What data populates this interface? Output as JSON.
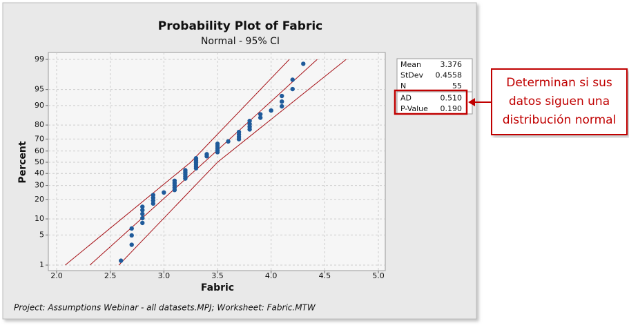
{
  "chart_data": {
    "type": "probability",
    "title": "Probability Plot of Fabric",
    "subtitle": "Normal - 95% CI",
    "x_label": "Fabric",
    "y_label": "Percent",
    "y_scale": "normal-probability",
    "grid": true,
    "xlim": [
      2,
      5
    ],
    "ylim": [
      1,
      99
    ],
    "xticks": [
      {
        "value": 2,
        "label": "2.0"
      },
      2.5,
      {
        "value": 3,
        "label": "3.0"
      },
      3.5,
      {
        "value": 4,
        "label": "4.0"
      },
      4.5,
      {
        "value": 5,
        "label": "5.0"
      }
    ],
    "yticks": [
      1,
      5,
      10,
      20,
      30,
      40,
      50,
      60,
      70,
      80,
      90,
      95,
      99
    ],
    "series": [
      {
        "color": "#1f5a9a",
        "x": [
          2.6,
          2.7,
          2.7,
          2.7,
          2.8,
          2.8,
          2.8,
          2.8,
          2.8,
          2.9,
          2.9,
          2.9,
          2.9,
          3.0,
          3.1,
          3.1,
          3.1,
          3.1,
          3.1,
          3.2,
          3.2,
          3.2,
          3.2,
          3.2,
          3.3,
          3.3,
          3.3,
          3.3,
          3.3,
          3.3,
          3.4,
          3.4,
          3.5,
          3.5,
          3.5,
          3.5,
          3.5,
          3.6,
          3.7,
          3.7,
          3.7,
          3.7,
          3.8,
          3.8,
          3.8,
          3.8,
          3.9,
          3.9,
          4.0,
          4.1,
          4.1,
          4.1,
          4.2,
          4.2,
          4.3
        ],
        "values": [
          1.3,
          3.1,
          4.9,
          6.7,
          8.5,
          10.3,
          12.1,
          13.9,
          15.7,
          17.5,
          19.3,
          21.1,
          22.9,
          24.7,
          26.5,
          28.3,
          30.1,
          31.9,
          33.8,
          35.6,
          37.4,
          39.2,
          41.0,
          42.8,
          44.6,
          46.4,
          48.2,
          50.0,
          51.8,
          53.6,
          55.4,
          57.2,
          59.0,
          60.8,
          62.6,
          64.4,
          66.2,
          68.1,
          69.9,
          71.7,
          73.5,
          75.3,
          77.1,
          78.9,
          80.7,
          82.5,
          84.3,
          86.1,
          87.9,
          89.7,
          91.5,
          93.3,
          95.1,
          96.9,
          98.7
        ]
      }
    ],
    "lines": [
      {
        "color": "#a50f15",
        "x": [
          2.08,
          3.25,
          4.17
        ],
        "values": [
          1,
          50,
          99
        ]
      },
      {
        "color": "#a50f15",
        "x": [
          2.31,
          3.376,
          4.43
        ],
        "values": [
          1,
          50,
          99
        ]
      },
      {
        "color": "#a50f15",
        "x": [
          2.58,
          3.5,
          4.7
        ],
        "values": [
          1,
          50,
          99
        ]
      }
    ],
    "stats": [
      {
        "label": "Mean",
        "value": "3.376"
      },
      {
        "label": "StDev",
        "value": "0.4558"
      },
      {
        "label": "N",
        "value": "55"
      },
      {
        "label": "AD",
        "value": "0.510"
      },
      {
        "label": "P-Value",
        "value": "0.190"
      }
    ],
    "annotation": [
      "Determinan si sus",
      "datos siguen una",
      "distribución normal"
    ],
    "footer": "Project: Assumptions Webinar - all datasets.MPJ; Worksheet: Fabric.MTW"
  }
}
